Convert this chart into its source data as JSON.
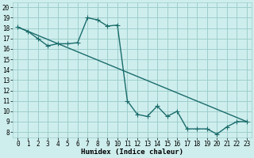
{
  "xlabel": "Humidex (Indice chaleur)",
  "xlim": [
    -0.5,
    23.5
  ],
  "ylim": [
    7.5,
    20.5
  ],
  "xticks": [
    0,
    1,
    2,
    3,
    4,
    5,
    6,
    7,
    8,
    9,
    10,
    11,
    12,
    13,
    14,
    15,
    16,
    17,
    18,
    19,
    20,
    21,
    22,
    23
  ],
  "yticks": [
    8,
    9,
    10,
    11,
    12,
    13,
    14,
    15,
    16,
    17,
    18,
    19,
    20
  ],
  "bg_color": "#ceeeed",
  "grid_color": "#9dcfcc",
  "line_color": "#1a6b6b",
  "line1_x": [
    0,
    1,
    2,
    3,
    4,
    5,
    6,
    7,
    8,
    9,
    10,
    11,
    12,
    13,
    14,
    15,
    16,
    17,
    18,
    19,
    20,
    21,
    22,
    23
  ],
  "line1_y": [
    18.1,
    17.7,
    17.0,
    16.3,
    16.5,
    16.5,
    16.6,
    19.0,
    18.8,
    18.2,
    18.3,
    11.0,
    9.7,
    9.5,
    10.5,
    9.5,
    10.0,
    8.3,
    8.3,
    8.3,
    7.8,
    8.5,
    9.0,
    9.0
  ],
  "line2_x": [
    0,
    23
  ],
  "line2_y": [
    18.1,
    9.0
  ],
  "marker": "+",
  "markersize": 5,
  "linewidth": 1.0
}
